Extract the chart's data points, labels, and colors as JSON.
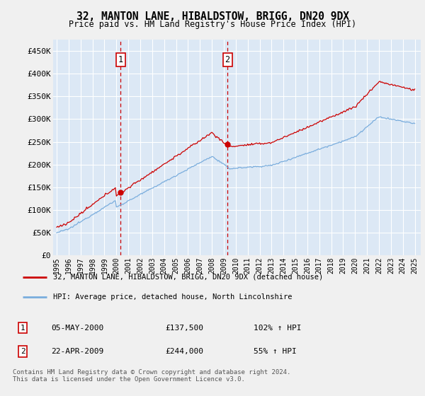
{
  "title": "32, MANTON LANE, HIBALDSTOW, BRIGG, DN20 9DX",
  "subtitle": "Price paid vs. HM Land Registry's House Price Index (HPI)",
  "hpi_label": "HPI: Average price, detached house, North Lincolnshire",
  "property_label": "32, MANTON LANE, HIBALDSTOW, BRIGG, DN20 9DX (detached house)",
  "transactions": [
    {
      "label": "1",
      "date": "05-MAY-2000",
      "price": 137500,
      "hpi_pct": "102% ↑ HPI",
      "x_year": 2000.35
    },
    {
      "label": "2",
      "date": "22-APR-2009",
      "price": 244000,
      "hpi_pct": "55% ↑ HPI",
      "x_year": 2009.3
    }
  ],
  "yticks": [
    0,
    50000,
    100000,
    150000,
    200000,
    250000,
    300000,
    350000,
    400000,
    450000
  ],
  "ylim": [
    0,
    475000
  ],
  "xlim_start": 1994.7,
  "xlim_end": 2025.5,
  "background_color": "#f0f0f0",
  "plot_bg_color": "#dce8f5",
  "grid_color": "#ffffff",
  "hpi_color": "#7aaddd",
  "property_color": "#cc0000",
  "dashed_color": "#cc0000",
  "footer": "Contains HM Land Registry data © Crown copyright and database right 2024.\nThis data is licensed under the Open Government Licence v3.0.",
  "xticks": [
    1995,
    1996,
    1997,
    1998,
    1999,
    2000,
    2001,
    2002,
    2003,
    2004,
    2005,
    2006,
    2007,
    2008,
    2009,
    2010,
    2011,
    2012,
    2013,
    2014,
    2015,
    2016,
    2017,
    2018,
    2019,
    2020,
    2021,
    2022,
    2023,
    2024,
    2025
  ]
}
